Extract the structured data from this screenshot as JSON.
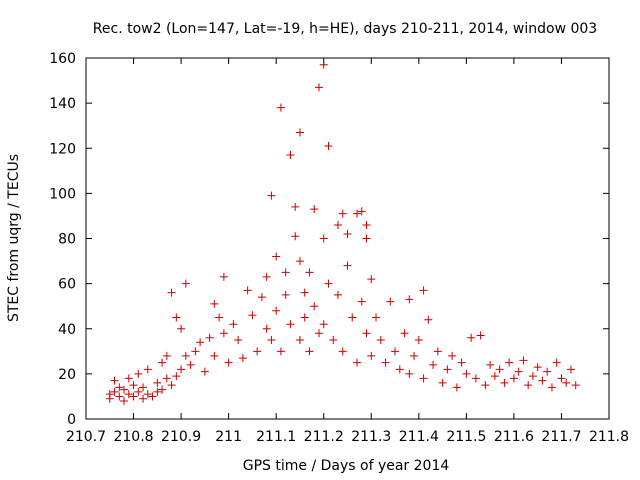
{
  "chart_data": {
    "type": "scatter",
    "title": "Rec. tow2 (Lon=147, Lat=-19, h=HE), days 210-211, 2014, window 003",
    "xlabel": "GPS time / Days of year 2014",
    "ylabel": "STEC from uqrg / TECUs",
    "xlim": [
      210.7,
      211.8
    ],
    "ylim": [
      0,
      160
    ],
    "x_ticks": [
      "210.7",
      "210.8",
      "210.9",
      "211",
      "211.1",
      "211.2",
      "211.3",
      "211.4",
      "211.5",
      "211.6",
      "211.7",
      "211.8"
    ],
    "y_ticks": [
      "0",
      "20",
      "40",
      "60",
      "80",
      "100",
      "120",
      "140",
      "160"
    ],
    "grid": false,
    "marker": "+",
    "marker_color": "#cc0000",
    "points": [
      [
        210.75,
        11
      ],
      [
        210.75,
        9
      ],
      [
        210.76,
        17
      ],
      [
        210.76,
        12
      ],
      [
        210.77,
        10
      ],
      [
        210.77,
        14
      ],
      [
        210.78,
        8
      ],
      [
        210.78,
        13
      ],
      [
        210.79,
        18
      ],
      [
        210.79,
        11
      ],
      [
        210.8,
        10
      ],
      [
        210.8,
        15
      ],
      [
        210.81,
        20
      ],
      [
        210.81,
        12
      ],
      [
        210.82,
        9
      ],
      [
        210.82,
        14
      ],
      [
        210.83,
        22
      ],
      [
        210.83,
        11
      ],
      [
        210.84,
        10
      ],
      [
        210.85,
        16
      ],
      [
        210.85,
        12
      ],
      [
        210.86,
        25
      ],
      [
        210.86,
        13
      ],
      [
        210.87,
        18
      ],
      [
        210.87,
        28
      ],
      [
        210.88,
        15
      ],
      [
        210.88,
        56
      ],
      [
        210.89,
        19
      ],
      [
        210.89,
        45
      ],
      [
        210.9,
        22
      ],
      [
        210.9,
        40
      ],
      [
        210.91,
        28
      ],
      [
        210.91,
        60
      ],
      [
        210.92,
        24
      ],
      [
        210.93,
        30
      ],
      [
        210.94,
        34
      ],
      [
        210.95,
        21
      ],
      [
        210.96,
        36
      ],
      [
        210.97,
        51
      ],
      [
        210.97,
        28
      ],
      [
        210.98,
        45
      ],
      [
        210.99,
        63
      ],
      [
        210.99,
        38
      ],
      [
        211.0,
        25
      ],
      [
        211.01,
        42
      ],
      [
        211.02,
        35
      ],
      [
        211.03,
        27
      ],
      [
        211.04,
        57
      ],
      [
        211.05,
        46
      ],
      [
        211.06,
        30
      ],
      [
        211.07,
        54
      ],
      [
        211.08,
        63
      ],
      [
        211.08,
        40
      ],
      [
        211.09,
        99
      ],
      [
        211.09,
        35
      ],
      [
        211.1,
        72
      ],
      [
        211.1,
        48
      ],
      [
        211.11,
        138
      ],
      [
        211.11,
        30
      ],
      [
        211.12,
        65
      ],
      [
        211.12,
        55
      ],
      [
        211.13,
        117
      ],
      [
        211.13,
        42
      ],
      [
        211.14,
        94
      ],
      [
        211.14,
        81
      ],
      [
        211.15,
        127
      ],
      [
        211.15,
        70
      ],
      [
        211.15,
        35
      ],
      [
        211.16,
        56
      ],
      [
        211.16,
        45
      ],
      [
        211.17,
        65
      ],
      [
        211.17,
        30
      ],
      [
        211.18,
        93
      ],
      [
        211.18,
        50
      ],
      [
        211.19,
        147
      ],
      [
        211.19,
        38
      ],
      [
        211.2,
        157
      ],
      [
        211.2,
        80
      ],
      [
        211.2,
        42
      ],
      [
        211.21,
        60
      ],
      [
        211.21,
        121
      ],
      [
        211.22,
        35
      ],
      [
        211.23,
        86
      ],
      [
        211.23,
        55
      ],
      [
        211.24,
        91
      ],
      [
        211.24,
        30
      ],
      [
        211.25,
        82
      ],
      [
        211.25,
        68
      ],
      [
        211.26,
        45
      ],
      [
        211.27,
        91
      ],
      [
        211.27,
        25
      ],
      [
        211.28,
        92
      ],
      [
        211.28,
        52
      ],
      [
        211.29,
        86
      ],
      [
        211.29,
        80
      ],
      [
        211.29,
        38
      ],
      [
        211.3,
        62
      ],
      [
        211.3,
        28
      ],
      [
        211.31,
        45
      ],
      [
        211.32,
        35
      ],
      [
        211.33,
        25
      ],
      [
        211.34,
        52
      ],
      [
        211.35,
        30
      ],
      [
        211.36,
        22
      ],
      [
        211.37,
        38
      ],
      [
        211.38,
        53
      ],
      [
        211.38,
        20
      ],
      [
        211.39,
        28
      ],
      [
        211.4,
        35
      ],
      [
        211.41,
        18
      ],
      [
        211.41,
        57
      ],
      [
        211.42,
        44
      ],
      [
        211.43,
        24
      ],
      [
        211.44,
        30
      ],
      [
        211.45,
        16
      ],
      [
        211.46,
        22
      ],
      [
        211.47,
        28
      ],
      [
        211.48,
        14
      ],
      [
        211.49,
        25
      ],
      [
        211.5,
        20
      ],
      [
        211.51,
        36
      ],
      [
        211.52,
        18
      ],
      [
        211.53,
        37
      ],
      [
        211.54,
        15
      ],
      [
        211.55,
        24
      ],
      [
        211.56,
        19
      ],
      [
        211.57,
        22
      ],
      [
        211.58,
        16
      ],
      [
        211.59,
        25
      ],
      [
        211.6,
        18
      ],
      [
        211.61,
        21
      ],
      [
        211.62,
        26
      ],
      [
        211.63,
        15
      ],
      [
        211.64,
        19
      ],
      [
        211.65,
        23
      ],
      [
        211.66,
        17
      ],
      [
        211.67,
        21
      ],
      [
        211.68,
        14
      ],
      [
        211.69,
        25
      ],
      [
        211.7,
        18
      ],
      [
        211.71,
        16
      ],
      [
        211.72,
        22
      ],
      [
        211.73,
        15
      ]
    ]
  }
}
